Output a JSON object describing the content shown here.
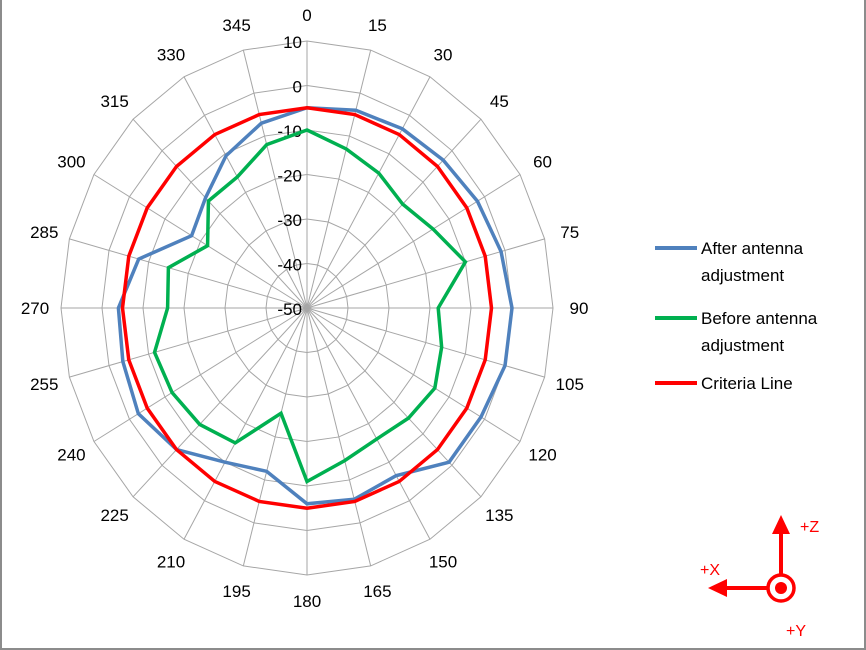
{
  "chart_data": {
    "type": "radar",
    "angles": [
      0,
      15,
      30,
      45,
      60,
      75,
      90,
      105,
      120,
      135,
      150,
      165,
      180,
      195,
      210,
      225,
      240,
      255,
      270,
      285,
      300,
      315,
      330,
      345
    ],
    "angle_labels": [
      "0",
      "15",
      "30",
      "45",
      "60",
      "75",
      "90",
      "105",
      "120",
      "135",
      "150",
      "165",
      "180",
      "195",
      "210",
      "225",
      "240",
      "255",
      "270",
      "285",
      "300",
      "315",
      "330",
      "345"
    ],
    "rlim": [
      -50,
      10
    ],
    "r_ticks": [
      10,
      0,
      -10,
      -20,
      -30,
      -40,
      -50
    ],
    "r_tick_labels": [
      "10",
      "0",
      "-10",
      "-20",
      "-30",
      "-40",
      "-50"
    ],
    "grid": true,
    "legend_placement": "right",
    "series": [
      {
        "name": "After antenna adjustment",
        "name_lines": [
          "After antenna",
          "adjustment"
        ],
        "color": "#4F81BD",
        "values": [
          -5,
          -4,
          -3.5,
          -3,
          -2,
          -1,
          0,
          0,
          -1,
          -1,
          -6.5,
          -5.5,
          -6,
          -12,
          -10,
          -5,
          -2.5,
          -3.5,
          -4,
          -7.5,
          -17.5,
          -15,
          -10.5,
          -7
        ]
      },
      {
        "name": " Before antenna adjustment",
        "name_lines": [
          " Before antenna",
          "adjustment"
        ],
        "color": "#00B050",
        "values": [
          -10,
          -13,
          -15,
          -17,
          -14.5,
          -10,
          -18,
          -16,
          -14,
          -15,
          -16,
          -14.5,
          -11,
          -25.5,
          -15,
          -13,
          -12,
          -11.5,
          -16,
          -15,
          -22,
          -16,
          -16,
          -12
        ]
      },
      {
        "name": "Criteria Line",
        "name_lines": [
          "Criteria Line"
        ],
        "color": "#FF0000",
        "values": [
          -5,
          -5,
          -5,
          -5,
          -5,
          -5,
          -5,
          -5,
          -5,
          -5,
          -5,
          -5,
          -5,
          -5,
          -5,
          -5,
          -5,
          -5,
          -5,
          -5,
          -5,
          -5,
          -5,
          -5
        ]
      }
    ]
  },
  "axes_indicator": {
    "color": "#FF0000",
    "x_label": "+X",
    "y_label": "+Y",
    "z_label": "+Z"
  }
}
